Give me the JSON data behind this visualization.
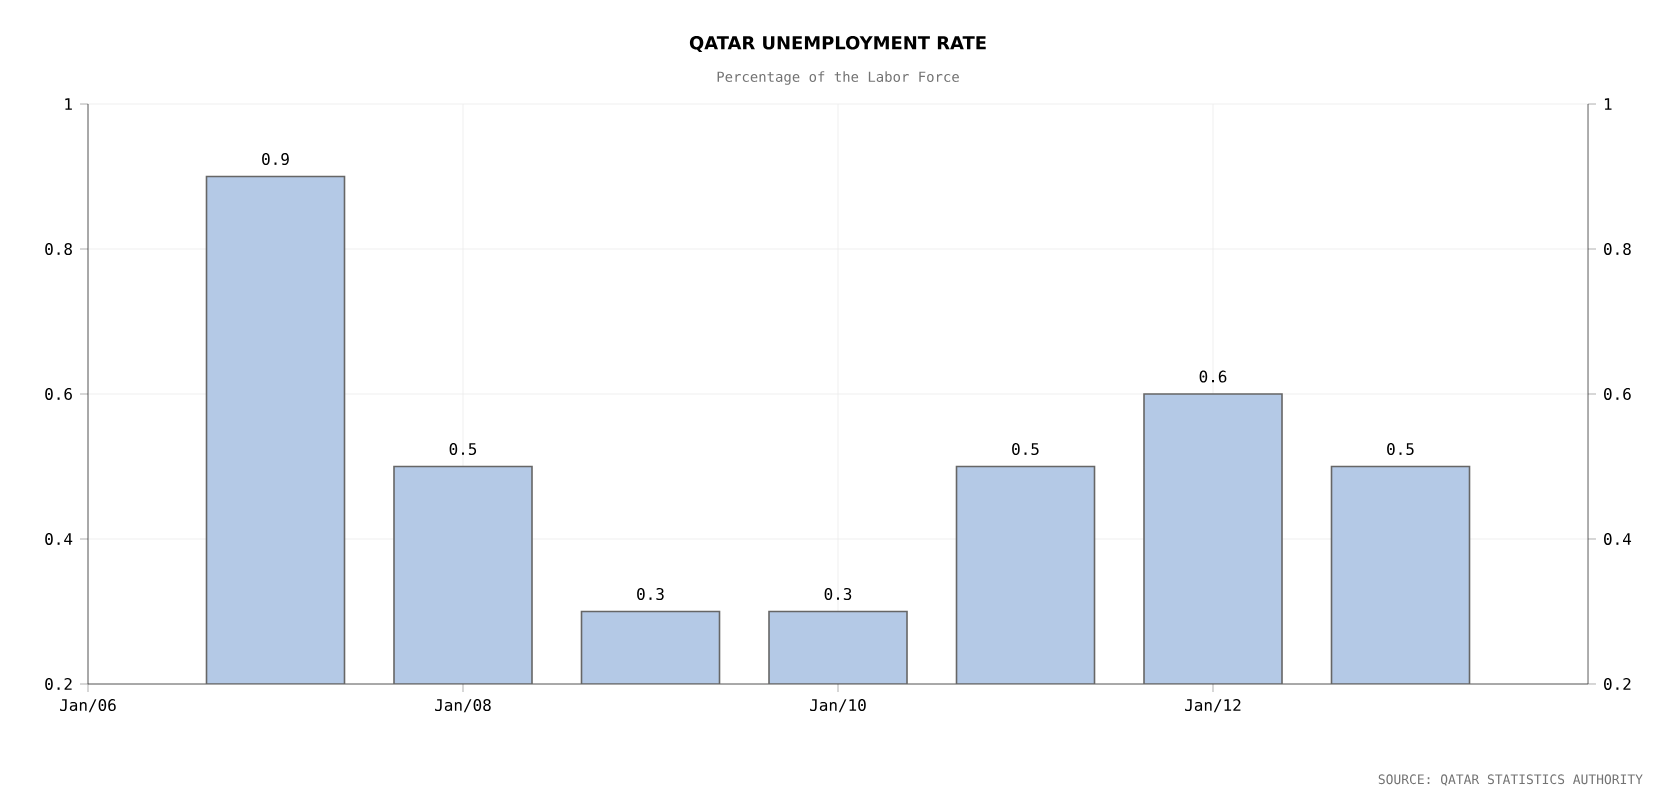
{
  "chart_data": {
    "type": "bar",
    "title": "QATAR UNEMPLOYMENT RATE",
    "subtitle": "Percentage of the Labor Force",
    "x": [
      "2007-01",
      "2008-01",
      "2009-01",
      "2010-01",
      "2011-01",
      "2012-01",
      "2013-01"
    ],
    "values": [
      0.9,
      0.5,
      0.3,
      0.3,
      0.5,
      0.6,
      0.5
    ],
    "color": "#b4c9e6",
    "xlim": [
      "2006-01",
      "2014-01"
    ],
    "xticks": [
      {
        "value": "2006-01",
        "label": "Jan/06"
      },
      {
        "value": "2008-01",
        "label": "Jan/08"
      },
      {
        "value": "2010-01",
        "label": "Jan/10"
      },
      {
        "value": "2012-01",
        "label": "Jan/12"
      }
    ],
    "ylim": [
      0.2,
      1
    ],
    "yticks": [
      0.2,
      0.4,
      0.6,
      0.8,
      1
    ],
    "y2lim": [
      0.2,
      1
    ],
    "y2ticks": [
      0.2,
      0.4,
      0.6,
      0.8,
      1
    ],
    "grid": true,
    "data_labels": true,
    "annotations": [
      "SOURCE: QATAR STATISTICS AUTHORITY"
    ]
  }
}
